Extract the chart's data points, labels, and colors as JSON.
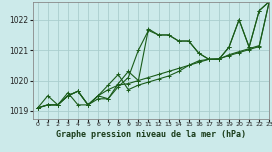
{
  "title": "Graphe pression niveau de la mer (hPa)",
  "background_color": "#cceaea",
  "grid_color": "#aacece",
  "line_color": "#1a5c1a",
  "xlim": [
    -0.5,
    23
  ],
  "ylim": [
    1018.75,
    1022.6
  ],
  "yticks": [
    1019,
    1020,
    1021,
    1022
  ],
  "xticks": [
    0,
    1,
    2,
    3,
    4,
    5,
    6,
    7,
    8,
    9,
    10,
    11,
    12,
    13,
    14,
    15,
    16,
    17,
    18,
    19,
    20,
    21,
    22,
    23
  ],
  "series": [
    [
      1019.1,
      1019.5,
      1019.2,
      1019.6,
      1019.2,
      1019.2,
      1019.4,
      1019.4,
      1019.9,
      1020.3,
      1020.0,
      1021.7,
      1021.5,
      1021.5,
      1021.3,
      1021.3,
      1020.9,
      1020.7,
      1020.7,
      1021.1,
      1022.0,
      1021.1,
      1022.3,
      1022.6
    ],
    [
      1019.1,
      1019.2,
      1019.2,
      1019.5,
      1019.65,
      1019.2,
      1019.5,
      1019.85,
      1020.2,
      1019.7,
      1019.85,
      1019.95,
      1020.05,
      1020.15,
      1020.3,
      1020.5,
      1020.65,
      1020.7,
      1020.7,
      1020.85,
      1020.95,
      1021.05,
      1021.15,
      1022.6
    ],
    [
      1019.1,
      1019.2,
      1019.2,
      1019.5,
      1019.65,
      1019.2,
      1019.5,
      1019.7,
      1019.85,
      1019.9,
      1020.0,
      1020.1,
      1020.2,
      1020.3,
      1020.4,
      1020.5,
      1020.6,
      1020.7,
      1020.72,
      1020.82,
      1020.92,
      1021.02,
      1021.12,
      1022.6
    ],
    [
      1019.1,
      1019.2,
      1019.2,
      1019.5,
      1019.65,
      1019.2,
      1019.5,
      1019.4,
      1019.8,
      1020.1,
      1021.0,
      1021.65,
      1021.5,
      1021.5,
      1021.3,
      1021.3,
      1020.9,
      1020.7,
      1020.7,
      1021.1,
      1022.0,
      1021.1,
      1022.3,
      1022.6
    ]
  ]
}
